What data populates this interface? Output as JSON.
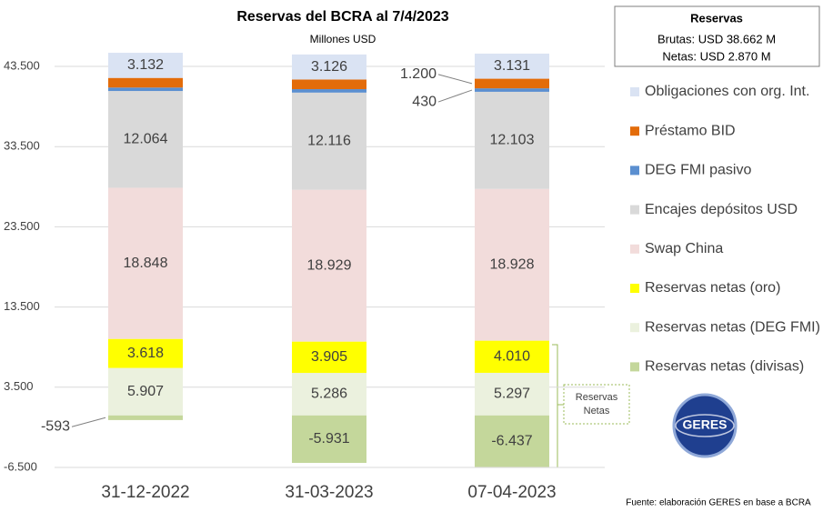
{
  "chart_data": {
    "type": "stacked-bar",
    "title": "Reservas del BCRA al 7/4/2023",
    "subtitle": "Millones USD",
    "categories": [
      "31-12-2022",
      "31-03-2023",
      "07-04-2023"
    ],
    "ylim": [
      -6500,
      46000
    ],
    "yticks": [
      {
        "value": -6500,
        "label": "-6.500"
      },
      {
        "value": 3500,
        "label": "3.500"
      },
      {
        "value": 13500,
        "label": "13.500"
      },
      {
        "value": 23500,
        "label": "23.500"
      },
      {
        "value": 33500,
        "label": "33.500"
      },
      {
        "value": 43500,
        "label": "43.500"
      }
    ],
    "grid": true,
    "legend": "right",
    "series": [
      {
        "name": "Obligaciones con org. Int.",
        "color": "#dae3f3",
        "values": [
          3132,
          3126,
          3131
        ],
        "value_labels": [
          "3.132",
          "3.126",
          "3.131"
        ]
      },
      {
        "name": "Préstamo BID",
        "color": "#e36c0a",
        "values": [
          1200,
          1200,
          1200
        ],
        "value_labels": [
          null,
          null,
          "1.200"
        ]
      },
      {
        "name": "DEG FMI pasivo",
        "color": "#5b8fd0",
        "values": [
          430,
          430,
          430
        ],
        "value_labels": [
          null,
          null,
          "430"
        ]
      },
      {
        "name": "Encajes depósitos USD",
        "color": "#d9d9d9",
        "values": [
          12064,
          12116,
          12103
        ],
        "value_labels": [
          "12.064",
          "12.116",
          "12.103"
        ]
      },
      {
        "name": "Swap China",
        "color": "#f2dcdb",
        "values": [
          18848,
          18929,
          18928
        ],
        "value_labels": [
          "18.848",
          "18.929",
          "18.928"
        ]
      },
      {
        "name": "Reservas netas (oro)",
        "color": "#ffff00",
        "values": [
          3618,
          3905,
          4010
        ],
        "value_labels": [
          "3.618",
          "3.905",
          "4.010"
        ]
      },
      {
        "name": "Reservas netas (DEG FMI)",
        "color": "#ebf1de",
        "values": [
          5907,
          5286,
          5297
        ],
        "value_labels": [
          "5.907",
          "5.286",
          "5.297"
        ]
      },
      {
        "name": "Reservas netas (divisas)",
        "color": "#c4d79b",
        "values": [
          -593,
          -5931,
          -6437
        ],
        "value_labels": [
          "-593",
          "-5.931",
          "-6.437"
        ]
      }
    ],
    "info_box": {
      "title": "Reservas",
      "lines": [
        "Brutas: USD 38.662 M",
        "Netas: USD 2.870 M"
      ]
    },
    "annotation": "Reservas Netas",
    "logo_text": "GERES",
    "source": "Fuente: elaboración GERES en base a BCRA"
  }
}
